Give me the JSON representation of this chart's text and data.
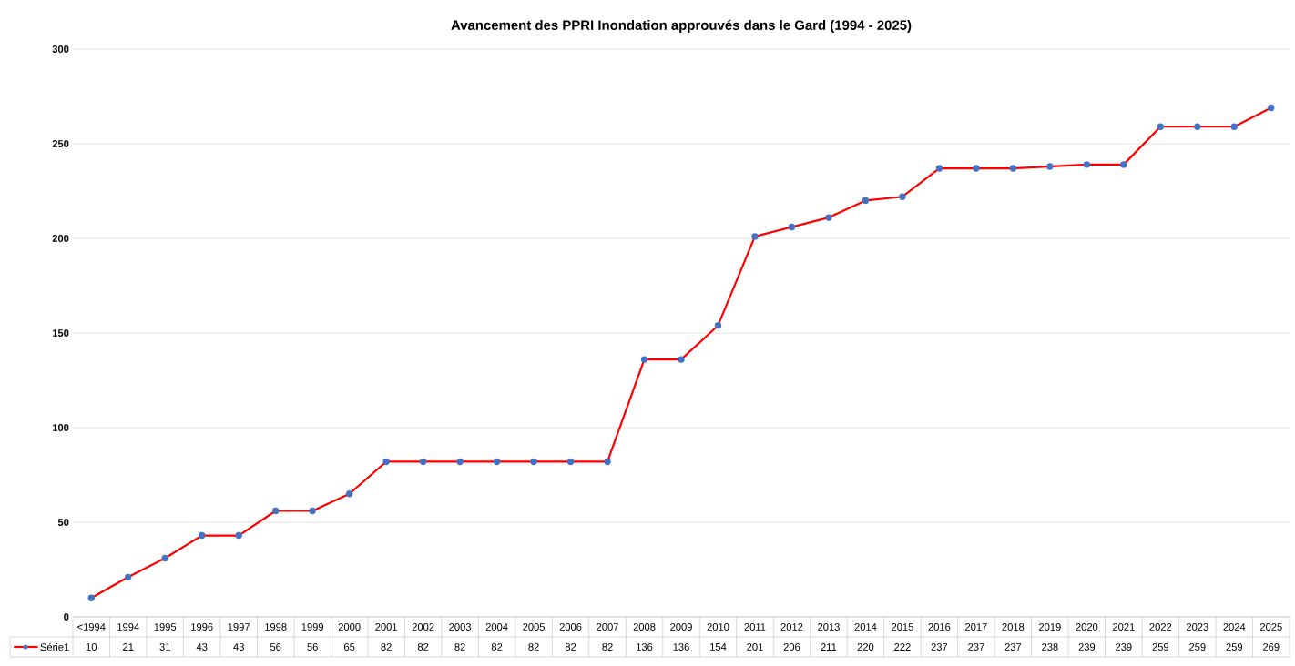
{
  "chart_data": {
    "type": "line",
    "title": "Avancement des PPRI Inondation approuvés dans le Gard (1994 - 2025)",
    "categories": [
      "<1994",
      "1994",
      "1995",
      "1996",
      "1997",
      "1998",
      "1999",
      "2000",
      "2001",
      "2002",
      "2003",
      "2004",
      "2005",
      "2006",
      "2007",
      "2008",
      "2009",
      "2010",
      "2011",
      "2012",
      "2013",
      "2014",
      "2015",
      "2016",
      "2017",
      "2018",
      "2019",
      "2020",
      "2021",
      "2022",
      "2023",
      "2024",
      "2025"
    ],
    "series": [
      {
        "name": "Série1",
        "color": "#ff0000",
        "values": [
          10,
          21,
          31,
          43,
          43,
          56,
          56,
          65,
          82,
          82,
          82,
          82,
          82,
          82,
          82,
          136,
          136,
          154,
          201,
          206,
          211,
          220,
          222,
          237,
          237,
          237,
          238,
          239,
          239,
          259,
          259,
          259,
          269
        ]
      }
    ],
    "ylim": [
      0,
      300
    ],
    "yticks": [
      0,
      50,
      100,
      150,
      200,
      250,
      300
    ],
    "grid": "y",
    "legend": "bottom",
    "marker": "circle",
    "line_style": "solid",
    "data_labels": true
  }
}
